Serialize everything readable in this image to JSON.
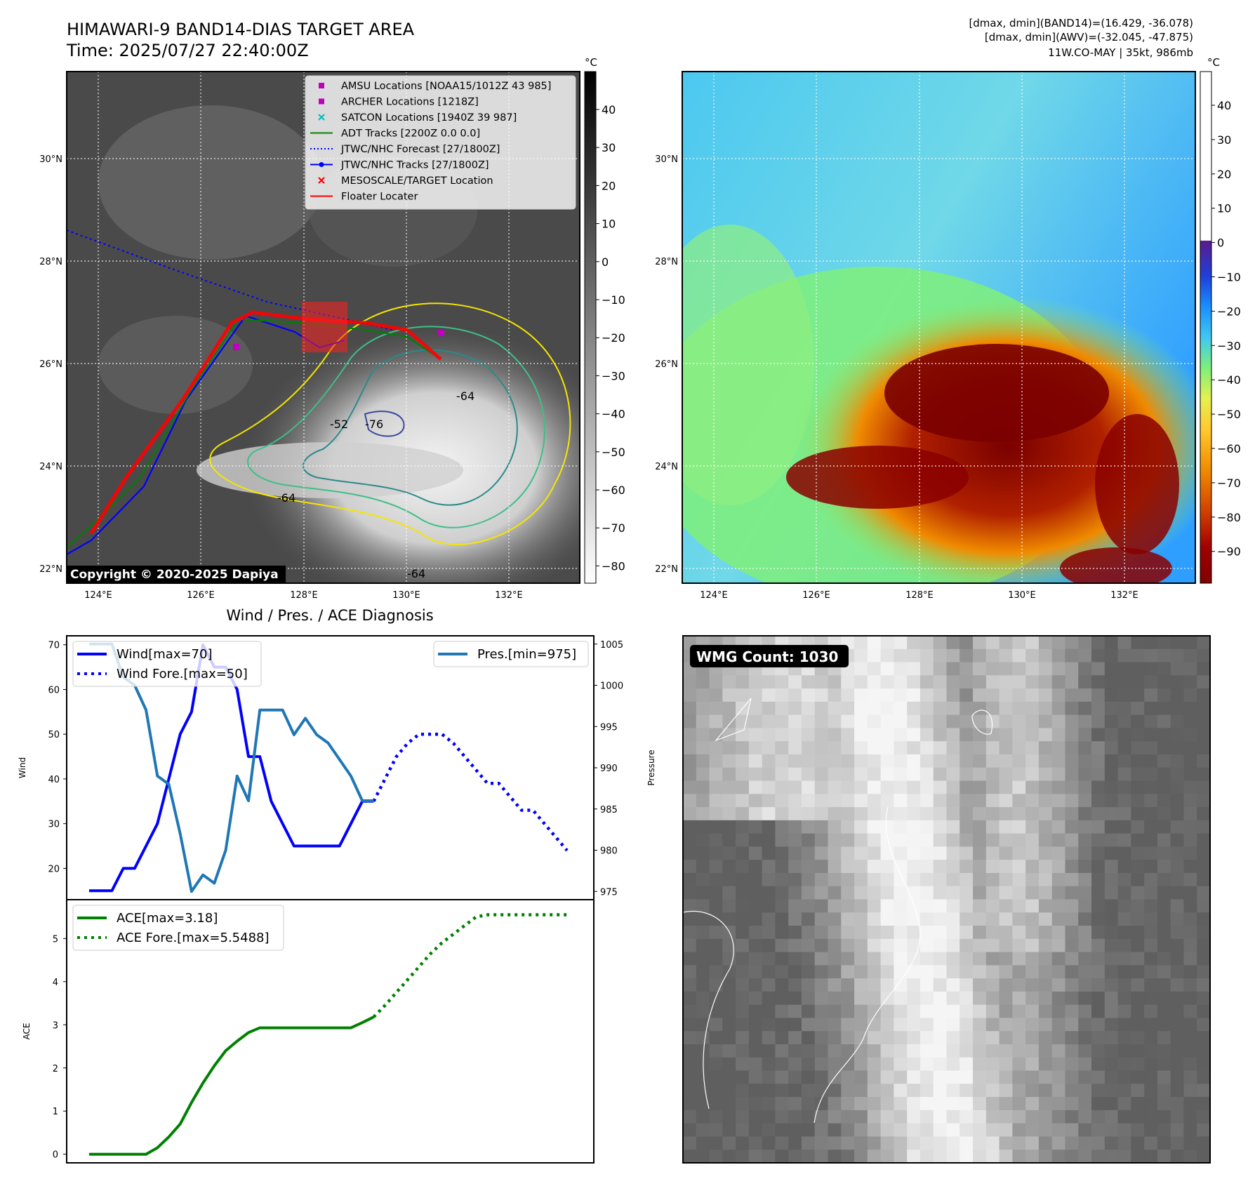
{
  "header": {
    "title": "HIMAWARI-9 BAND14-DIAS TARGET AREA",
    "time": "Time: 2025/07/27 22:40:00Z",
    "info": [
      "[dmax, dmin](BAND14)=(16.429, -36.078)",
      "[dmax, dmin](AWV)=(-32.045, -47.875)",
      "11W.CO-MAY | 35kt, 986mb"
    ]
  },
  "map_axes": {
    "lon_labels": [
      "124°E",
      "126°E",
      "128°E",
      "130°E",
      "132°E"
    ],
    "lat_labels": [
      "22°N",
      "24°N",
      "26°N",
      "28°N",
      "30°N"
    ]
  },
  "ir_panel": {
    "copyright": "Copyright © 2020-2025 Dapiya",
    "contour_labels": [
      "-76",
      "-64",
      "-64",
      "-52",
      "-64"
    ],
    "legend": [
      {
        "label": "AMSU Locations [NOAA15/1012Z 43 985]",
        "marker": "square",
        "color": "#bf00bf"
      },
      {
        "label": "ARCHER Locations [1218Z]",
        "marker": "square",
        "color": "#bf00bf"
      },
      {
        "label": "SATCON Locations [1940Z 39 987]",
        "marker": "x",
        "color": "#00bfbf"
      },
      {
        "label": "ADT Tracks [2200Z 0.0 0.0]",
        "marker": "line",
        "color": "#008000"
      },
      {
        "label": "JTWC/NHC Forecast [27/1800Z]",
        "marker": "dotted",
        "color": "#0000ff"
      },
      {
        "label": "JTWC/NHC Tracks [27/1800Z]",
        "marker": "line-dot",
        "color": "#0000ff"
      },
      {
        "label": "MESOSCALE/TARGET Location",
        "marker": "x",
        "color": "#ff0000"
      },
      {
        "label": "Floater Locater",
        "marker": "line",
        "color": "#ff0000"
      }
    ],
    "colorbar": {
      "unit": "°C",
      "ticks": [
        "40",
        "30",
        "20",
        "10",
        "0",
        "−10",
        "−20",
        "−30",
        "−40",
        "−50",
        "−60",
        "−70",
        "−80"
      ]
    }
  },
  "awv_panel": {
    "colorbar": {
      "unit": "°C",
      "ticks": [
        "40",
        "30",
        "20",
        "10",
        "0",
        "−10",
        "−20",
        "−30",
        "−40",
        "−50",
        "−60",
        "−70",
        "−80",
        "−90"
      ]
    }
  },
  "diag_title": "Wind / Pres. / ACE Diagnosis",
  "wmg_panel": {
    "badge": "WMG Count: 1030"
  },
  "colors": {
    "wind": "#0000ff",
    "pres": "#1f77b4",
    "ace": "#008000"
  },
  "chart_data": [
    {
      "type": "line",
      "ylabel": "Wind",
      "y2label": "Pressure",
      "ylim": [
        13,
        72
      ],
      "y2lim": [
        974,
        1006
      ],
      "yticks": [
        20,
        30,
        40,
        50,
        60,
        70
      ],
      "y2ticks": [
        975,
        980,
        985,
        990,
        995,
        1000,
        1005
      ],
      "x": [
        0,
        1,
        2,
        3,
        4,
        5,
        6,
        7,
        8,
        9,
        10,
        11,
        12,
        13,
        14,
        15,
        16,
        17,
        18,
        19,
        20,
        21,
        22,
        23,
        24,
        25
      ],
      "series": [
        {
          "name": "Wind[max=70]",
          "axis": "left",
          "style": "solid",
          "color": "#0000ff",
          "x": [
            0,
            2,
            3,
            4,
            5,
            6,
            7,
            8,
            9,
            10,
            11,
            12,
            13,
            14,
            15,
            16,
            17,
            18,
            19,
            20,
            21,
            22,
            23,
            24,
            25
          ],
          "values": [
            15,
            15,
            20,
            20,
            25,
            30,
            40,
            50,
            55,
            70,
            65,
            65,
            60,
            45,
            45,
            35,
            30,
            25,
            25,
            25,
            25,
            25,
            30,
            35,
            35
          ]
        },
        {
          "name": "Wind Fore.[max=50]",
          "axis": "left",
          "style": "dotted",
          "color": "#0000ff",
          "x": [
            25,
            26,
            27,
            28,
            29,
            30,
            31,
            32,
            33,
            34,
            35,
            36,
            37,
            38,
            39,
            40,
            41,
            42
          ],
          "values": [
            35,
            40,
            45,
            48,
            50,
            50,
            50,
            48,
            45,
            42,
            39,
            39,
            36,
            33,
            33,
            30,
            27,
            24
          ]
        },
        {
          "name": "Pres.[min=975]",
          "axis": "right",
          "style": "solid",
          "color": "#1f77b4",
          "x": [
            0,
            1,
            2,
            3,
            4,
            5,
            6,
            7,
            8,
            9,
            10,
            11,
            12,
            13,
            14,
            15,
            16,
            17,
            18,
            19,
            20,
            21,
            22,
            23,
            24,
            25
          ],
          "values": [
            1005,
            1005,
            1005,
            1001,
            1000,
            997,
            989,
            988,
            982,
            975,
            977,
            976,
            980,
            989,
            986,
            997,
            997,
            997,
            994,
            996,
            994,
            993,
            991,
            989,
            986,
            986
          ]
        }
      ]
    },
    {
      "type": "line",
      "ylabel": "ACE",
      "ylim": [
        -0.2,
        5.9
      ],
      "yticks": [
        0,
        1,
        2,
        3,
        4,
        5
      ],
      "series": [
        {
          "name": "ACE[max=3.18]",
          "style": "solid",
          "color": "#008000",
          "x": [
            0,
            1,
            2,
            3,
            4,
            5,
            6,
            7,
            8,
            9,
            10,
            11,
            12,
            13,
            14,
            15,
            16,
            17,
            18,
            19,
            20,
            21,
            22,
            23,
            24,
            25
          ],
          "values": [
            0,
            0,
            0,
            0,
            0,
            0,
            0.15,
            0.4,
            0.7,
            1.2,
            1.65,
            2.05,
            2.4,
            2.62,
            2.82,
            2.93,
            2.93,
            2.93,
            2.93,
            2.93,
            2.93,
            2.93,
            2.93,
            2.93,
            3.05,
            3.18
          ]
        },
        {
          "name": "ACE Fore.[max=5.5488]",
          "style": "dotted",
          "color": "#008000",
          "x": [
            25,
            26,
            27,
            28,
            29,
            30,
            31,
            32,
            33,
            34,
            35,
            36,
            37,
            38,
            39,
            40,
            41,
            42
          ],
          "values": [
            3.18,
            3.45,
            3.75,
            4.05,
            4.35,
            4.65,
            4.9,
            5.1,
            5.3,
            5.5,
            5.55,
            5.55,
            5.55,
            5.55,
            5.55,
            5.55,
            5.55,
            5.55
          ]
        }
      ]
    }
  ]
}
